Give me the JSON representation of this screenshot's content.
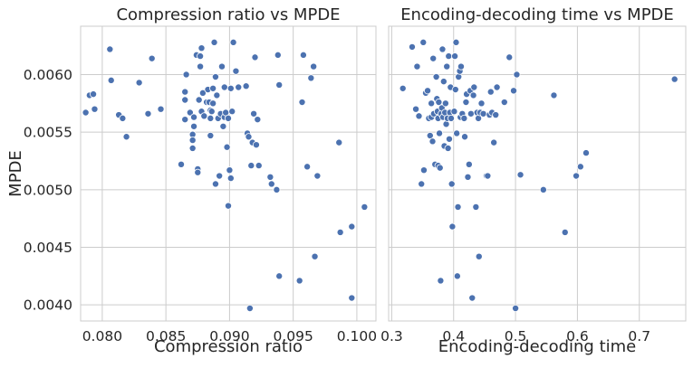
{
  "colors": {
    "point": "#4c72b0",
    "grid": "#cccccc",
    "text": "#262626"
  },
  "chart_data": [
    {
      "type": "scatter",
      "title": "Compression ratio vs MPDE",
      "xlabel": "Compression ratio",
      "ylabel": "MPDE",
      "xlim": [
        0.0783,
        0.1015
      ],
      "ylim": [
        0.00386,
        0.00642
      ],
      "xticks": [
        0.08,
        0.085,
        0.09,
        0.095,
        0.1
      ],
      "xtick_labels": [
        "0.080",
        "0.085",
        "0.090",
        "0.095",
        "0.100"
      ],
      "yticks": [
        0.004,
        0.0045,
        0.005,
        0.0055,
        0.006
      ],
      "ytick_labels": [
        "0.0040",
        "0.0045",
        "0.0050",
        "0.0055",
        "0.0060"
      ],
      "grid": true,
      "points": [
        [
          0.0787,
          0.00567
        ],
        [
          0.079,
          0.00582
        ],
        [
          0.0793,
          0.00583
        ],
        [
          0.0794,
          0.0057
        ],
        [
          0.0806,
          0.00622
        ],
        [
          0.0807,
          0.00595
        ],
        [
          0.0813,
          0.00565
        ],
        [
          0.0816,
          0.00562
        ],
        [
          0.0819,
          0.00546
        ],
        [
          0.0829,
          0.00593
        ],
        [
          0.0836,
          0.00566
        ],
        [
          0.0839,
          0.00614
        ],
        [
          0.0846,
          0.0057
        ],
        [
          0.0862,
          0.00522
        ],
        [
          0.0865,
          0.00585
        ],
        [
          0.0865,
          0.00578
        ],
        [
          0.0865,
          0.00561
        ],
        [
          0.0866,
          0.006
        ],
        [
          0.0869,
          0.00567
        ],
        [
          0.0871,
          0.00548
        ],
        [
          0.0871,
          0.00543
        ],
        [
          0.0871,
          0.00536
        ],
        [
          0.0872,
          0.00563
        ],
        [
          0.0872,
          0.00555
        ],
        [
          0.0874,
          0.00617
        ],
        [
          0.0875,
          0.00518
        ],
        [
          0.0875,
          0.00515
        ],
        [
          0.0876,
          0.00578
        ],
        [
          0.0877,
          0.00616
        ],
        [
          0.0877,
          0.00607
        ],
        [
          0.0878,
          0.00623
        ],
        [
          0.0878,
          0.00568
        ],
        [
          0.0879,
          0.00584
        ],
        [
          0.088,
          0.00564
        ],
        [
          0.0882,
          0.00576
        ],
        [
          0.0883,
          0.00587
        ],
        [
          0.0884,
          0.00576
        ],
        [
          0.0885,
          0.00569
        ],
        [
          0.0885,
          0.00562
        ],
        [
          0.0885,
          0.00547
        ],
        [
          0.0886,
          0.00568
        ],
        [
          0.0887,
          0.00588
        ],
        [
          0.0887,
          0.00575
        ],
        [
          0.0888,
          0.00628
        ],
        [
          0.0889,
          0.00598
        ],
        [
          0.0889,
          0.00505
        ],
        [
          0.089,
          0.00582
        ],
        [
          0.0891,
          0.00562
        ],
        [
          0.0892,
          0.00512
        ],
        [
          0.0893,
          0.00566
        ],
        [
          0.0894,
          0.00607
        ],
        [
          0.0895,
          0.00555
        ],
        [
          0.0896,
          0.00589
        ],
        [
          0.0896,
          0.00563
        ],
        [
          0.0897,
          0.00567
        ],
        [
          0.0898,
          0.00537
        ],
        [
          0.0899,
          0.00562
        ],
        [
          0.0899,
          0.00486
        ],
        [
          0.09,
          0.00517
        ],
        [
          0.0901,
          0.0051
        ],
        [
          0.0901,
          0.00588
        ],
        [
          0.0902,
          0.00568
        ],
        [
          0.0903,
          0.00628
        ],
        [
          0.0905,
          0.00603
        ],
        [
          0.0907,
          0.00589
        ],
        [
          0.0913,
          0.0059
        ],
        [
          0.0914,
          0.00549
        ],
        [
          0.0915,
          0.00546
        ],
        [
          0.0916,
          0.00397
        ],
        [
          0.0917,
          0.00521
        ],
        [
          0.0918,
          0.00541
        ],
        [
          0.0919,
          0.00566
        ],
        [
          0.092,
          0.00615
        ],
        [
          0.0921,
          0.00539
        ],
        [
          0.0922,
          0.00561
        ],
        [
          0.0923,
          0.00521
        ],
        [
          0.0932,
          0.00511
        ],
        [
          0.0933,
          0.00505
        ],
        [
          0.0937,
          0.005
        ],
        [
          0.0938,
          0.00617
        ],
        [
          0.0939,
          0.00425
        ],
        [
          0.0939,
          0.00591
        ],
        [
          0.0955,
          0.00421
        ],
        [
          0.0957,
          0.00576
        ],
        [
          0.0958,
          0.00617
        ],
        [
          0.0961,
          0.0052
        ],
        [
          0.0964,
          0.00597
        ],
        [
          0.0966,
          0.00607
        ],
        [
          0.0967,
          0.00442
        ],
        [
          0.0969,
          0.00512
        ],
        [
          0.0986,
          0.00541
        ],
        [
          0.0987,
          0.00463
        ],
        [
          0.0996,
          0.00406
        ],
        [
          0.0996,
          0.00468
        ],
        [
          0.1006,
          0.00485
        ]
      ]
    },
    {
      "type": "scatter",
      "title": "Encoding-decoding time vs MPDE",
      "xlabel": "Encoding-decoding time",
      "ylabel": "",
      "xlim": [
        0.295,
        0.775
      ],
      "ylim": [
        0.00386,
        0.00642
      ],
      "xticks": [
        0.3,
        0.4,
        0.5,
        0.6,
        0.7
      ],
      "xtick_labels": [
        "0.3",
        "0.4",
        "0.5",
        "0.6",
        "0.7"
      ],
      "yticks": [
        0.004,
        0.0045,
        0.005,
        0.0055,
        0.006
      ],
      "grid": true,
      "points": [
        [
          0.318,
          0.00588
        ],
        [
          0.333,
          0.00624
        ],
        [
          0.339,
          0.0057
        ],
        [
          0.341,
          0.00607
        ],
        [
          0.344,
          0.00564
        ],
        [
          0.348,
          0.00505
        ],
        [
          0.351,
          0.00628
        ],
        [
          0.352,
          0.00517
        ],
        [
          0.355,
          0.00584
        ],
        [
          0.358,
          0.00586
        ],
        [
          0.36,
          0.00562
        ],
        [
          0.362,
          0.00547
        ],
        [
          0.364,
          0.00575
        ],
        [
          0.364,
          0.00563
        ],
        [
          0.366,
          0.00542
        ],
        [
          0.367,
          0.00614
        ],
        [
          0.368,
          0.00566
        ],
        [
          0.37,
          0.00522
        ],
        [
          0.372,
          0.00598
        ],
        [
          0.373,
          0.00579
        ],
        [
          0.374,
          0.00568
        ],
        [
          0.375,
          0.00562
        ],
        [
          0.375,
          0.00521
        ],
        [
          0.376,
          0.00576
        ],
        [
          0.377,
          0.00549
        ],
        [
          0.378,
          0.00519
        ],
        [
          0.379,
          0.00421
        ],
        [
          0.38,
          0.00566
        ],
        [
          0.381,
          0.00571
        ],
        [
          0.382,
          0.00622
        ],
        [
          0.383,
          0.00563
        ],
        [
          0.384,
          0.00594
        ],
        [
          0.385,
          0.00538
        ],
        [
          0.386,
          0.00567
        ],
        [
          0.387,
          0.00575
        ],
        [
          0.388,
          0.00557
        ],
        [
          0.389,
          0.00607
        ],
        [
          0.39,
          0.00562
        ],
        [
          0.391,
          0.00536
        ],
        [
          0.392,
          0.00616
        ],
        [
          0.393,
          0.00544
        ],
        [
          0.394,
          0.00567
        ],
        [
          0.395,
          0.00589
        ],
        [
          0.396,
          0.00562
        ],
        [
          0.397,
          0.00505
        ],
        [
          0.398,
          0.00468
        ],
        [
          0.401,
          0.00568
        ],
        [
          0.402,
          0.00616
        ],
        [
          0.403,
          0.00587
        ],
        [
          0.404,
          0.00628
        ],
        [
          0.405,
          0.00549
        ],
        [
          0.406,
          0.00425
        ],
        [
          0.407,
          0.00485
        ],
        [
          0.408,
          0.00598
        ],
        [
          0.41,
          0.00603
        ],
        [
          0.411,
          0.00563
        ],
        [
          0.412,
          0.00607
        ],
        [
          0.414,
          0.00566
        ],
        [
          0.417,
          0.00562
        ],
        [
          0.418,
          0.00546
        ],
        [
          0.42,
          0.00576
        ],
        [
          0.421,
          0.00583
        ],
        [
          0.423,
          0.00511
        ],
        [
          0.425,
          0.00522
        ],
        [
          0.427,
          0.00586
        ],
        [
          0.428,
          0.00566
        ],
        [
          0.43,
          0.00406
        ],
        [
          0.432,
          0.00582
        ],
        [
          0.433,
          0.00589
        ],
        [
          0.436,
          0.00485
        ],
        [
          0.438,
          0.00567
        ],
        [
          0.44,
          0.00562
        ],
        [
          0.441,
          0.00442
        ],
        [
          0.443,
          0.00567
        ],
        [
          0.445,
          0.00575
        ],
        [
          0.448,
          0.00566
        ],
        [
          0.453,
          0.00512
        ],
        [
          0.455,
          0.00512
        ],
        [
          0.458,
          0.00565
        ],
        [
          0.46,
          0.00585
        ],
        [
          0.462,
          0.00567
        ],
        [
          0.465,
          0.00541
        ],
        [
          0.468,
          0.00565
        ],
        [
          0.47,
          0.00589
        ],
        [
          0.482,
          0.00576
        ],
        [
          0.49,
          0.00615
        ],
        [
          0.497,
          0.00586
        ],
        [
          0.5,
          0.00397
        ],
        [
          0.502,
          0.006
        ],
        [
          0.508,
          0.00513
        ],
        [
          0.545,
          0.005
        ],
        [
          0.562,
          0.00582
        ],
        [
          0.58,
          0.00463
        ],
        [
          0.598,
          0.00512
        ],
        [
          0.605,
          0.0052
        ],
        [
          0.614,
          0.00532
        ],
        [
          0.757,
          0.00596
        ]
      ]
    }
  ]
}
